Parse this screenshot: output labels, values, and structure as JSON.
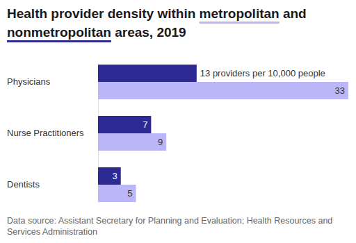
{
  "chart_data": {
    "type": "bar",
    "orientation": "horizontal",
    "title": "Health provider density within metropolitan and nonmetropolitan areas, 2019",
    "source": "Data source: Assistant Secretary for Planning and Evaluation; Health Resources and Services Administration",
    "categories": [
      "Physicians",
      "Nurse Practitioners",
      "Dentists"
    ],
    "series": [
      {
        "name": "nonmetropolitan",
        "color": "#2e2a94",
        "values": [
          13,
          7,
          3
        ],
        "value_labels": [
          "13 providers per 10,000 people",
          "7",
          "3"
        ]
      },
      {
        "name": "metropolitan",
        "color": "#bab6f7",
        "values": [
          33,
          9,
          5
        ],
        "value_labels": [
          "33",
          "9",
          "5"
        ]
      }
    ],
    "xlim": [
      0,
      33
    ],
    "data_labels": true,
    "tick_labels": "y",
    "grid": false
  }
}
